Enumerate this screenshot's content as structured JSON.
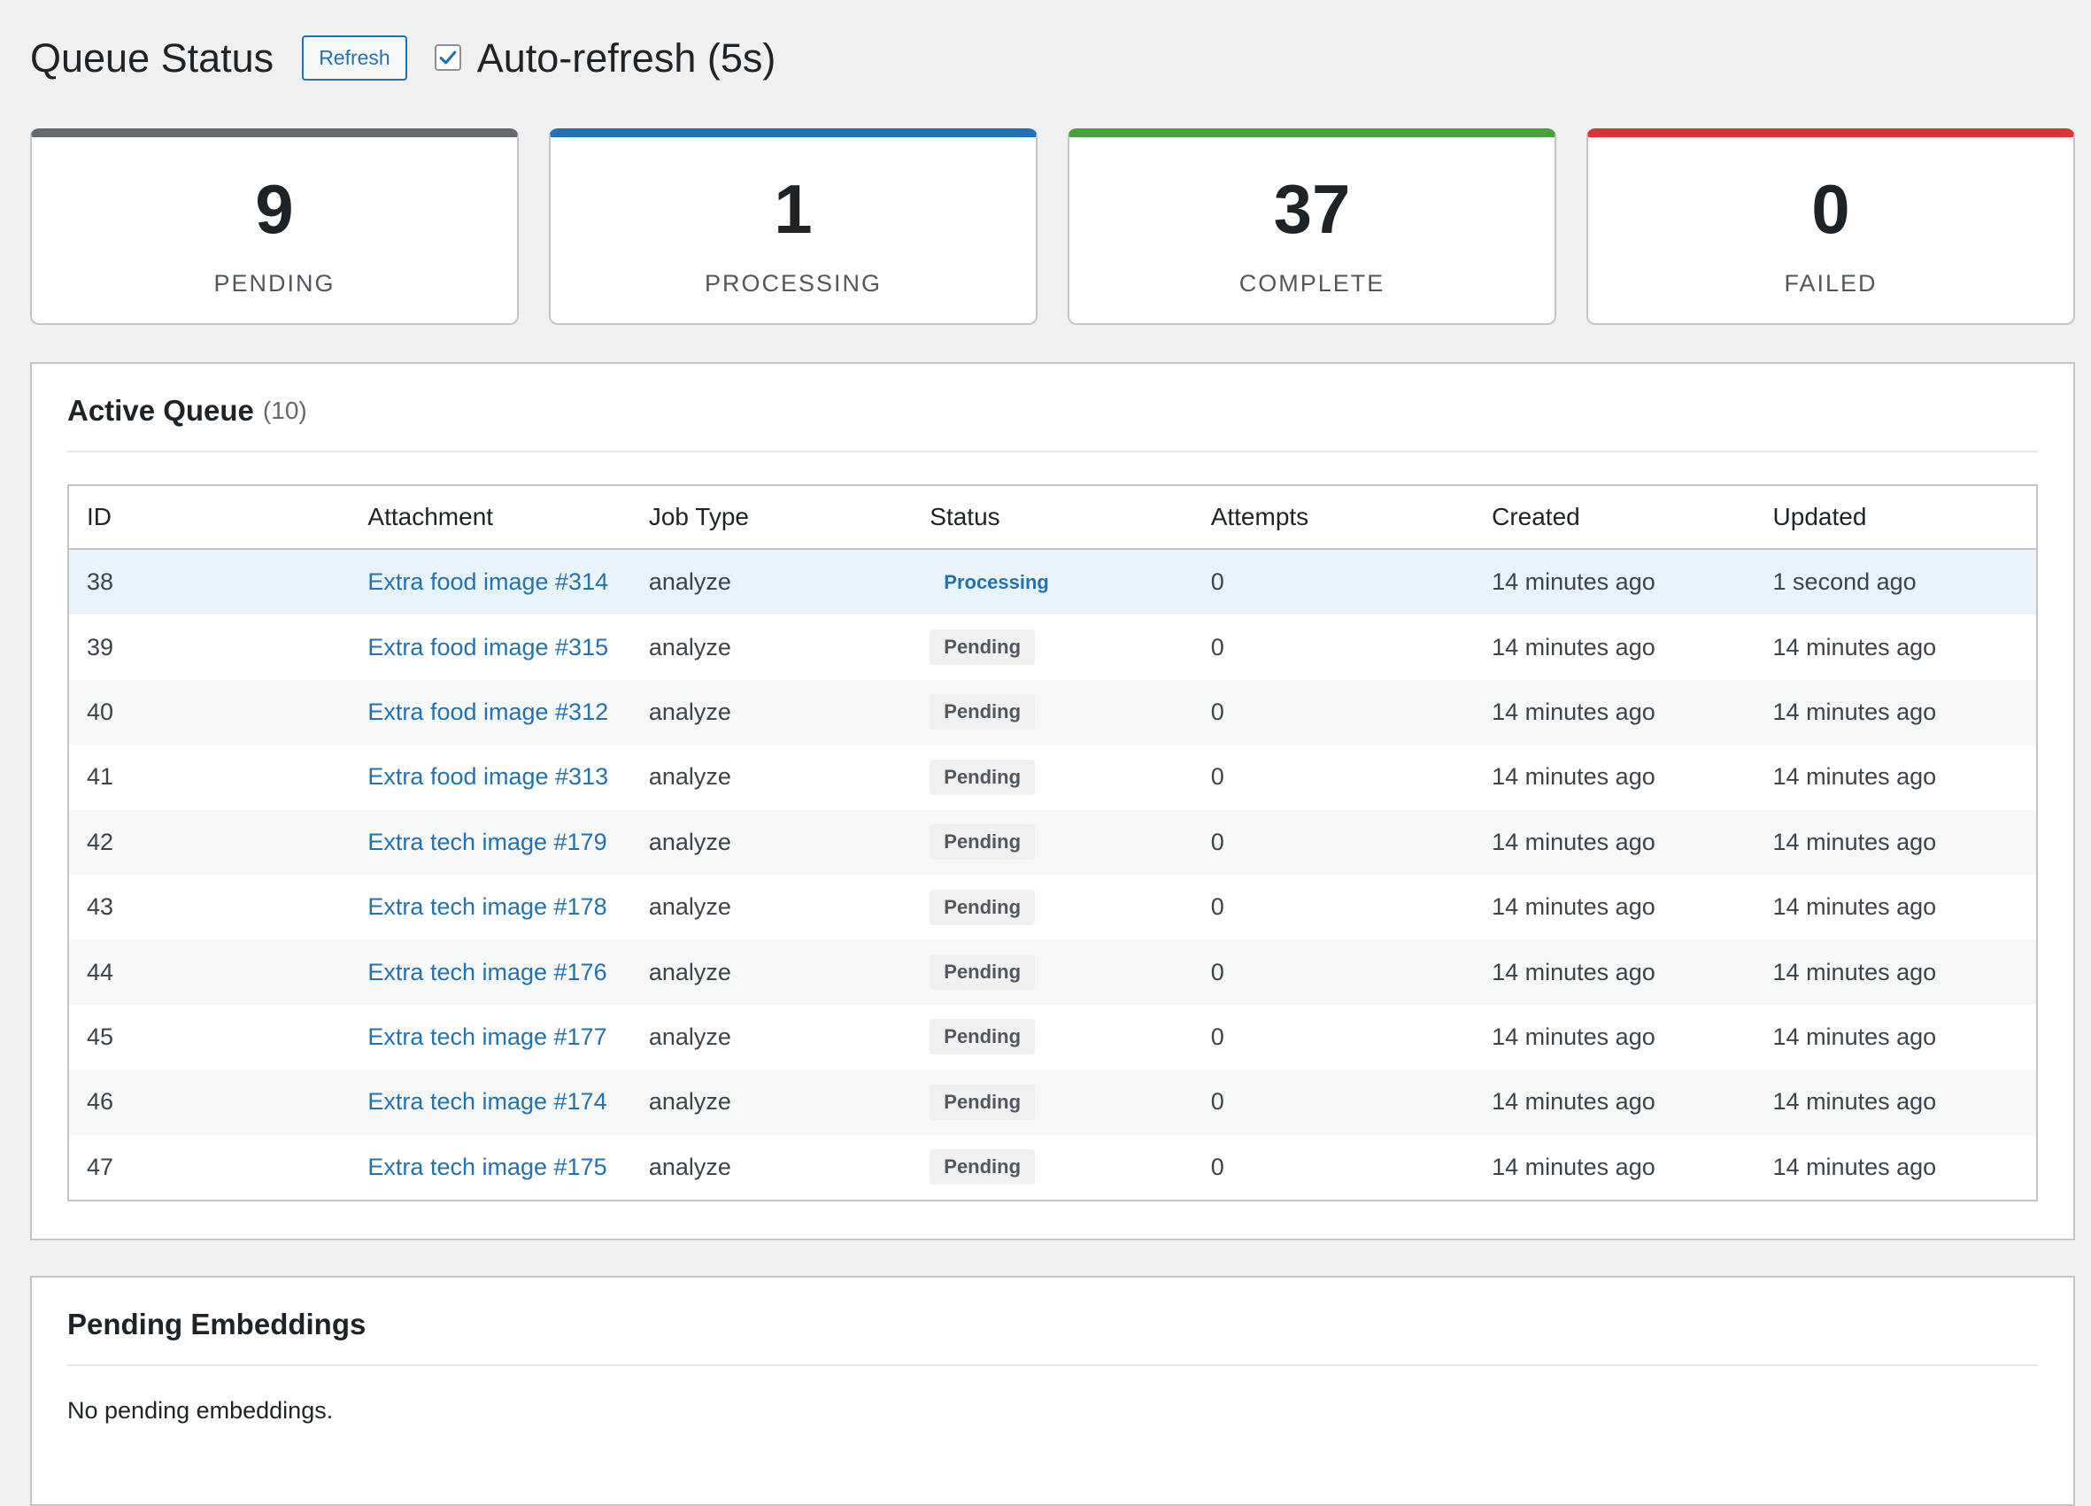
{
  "header": {
    "title": "Queue Status",
    "refresh_label": "Refresh",
    "auto_refresh_label": "Auto-refresh (5s)",
    "auto_refresh_checked": true
  },
  "stats": [
    {
      "value": "9",
      "label": "PENDING",
      "color": "#646970"
    },
    {
      "value": "1",
      "label": "PROCESSING",
      "color": "#2271b1"
    },
    {
      "value": "37",
      "label": "COMPLETE",
      "color": "#46a33a"
    },
    {
      "value": "0",
      "label": "FAILED",
      "color": "#d63638"
    }
  ],
  "active_queue": {
    "title": "Active Queue",
    "count": "(10)",
    "columns": [
      "ID",
      "Attachment",
      "Job Type",
      "Status",
      "Attempts",
      "Created",
      "Updated"
    ],
    "rows": [
      {
        "id": "38",
        "attachment": "Extra food image #314",
        "job_type": "analyze",
        "status": "Processing",
        "attempts": "0",
        "created": "14 minutes ago",
        "updated": "1 second ago"
      },
      {
        "id": "39",
        "attachment": "Extra food image #315",
        "job_type": "analyze",
        "status": "Pending",
        "attempts": "0",
        "created": "14 minutes ago",
        "updated": "14 minutes ago"
      },
      {
        "id": "40",
        "attachment": "Extra food image #312",
        "job_type": "analyze",
        "status": "Pending",
        "attempts": "0",
        "created": "14 minutes ago",
        "updated": "14 minutes ago"
      },
      {
        "id": "41",
        "attachment": "Extra food image #313",
        "job_type": "analyze",
        "status": "Pending",
        "attempts": "0",
        "created": "14 minutes ago",
        "updated": "14 minutes ago"
      },
      {
        "id": "42",
        "attachment": "Extra tech image #179",
        "job_type": "analyze",
        "status": "Pending",
        "attempts": "0",
        "created": "14 minutes ago",
        "updated": "14 minutes ago"
      },
      {
        "id": "43",
        "attachment": "Extra tech image #178",
        "job_type": "analyze",
        "status": "Pending",
        "attempts": "0",
        "created": "14 minutes ago",
        "updated": "14 minutes ago"
      },
      {
        "id": "44",
        "attachment": "Extra tech image #176",
        "job_type": "analyze",
        "status": "Pending",
        "attempts": "0",
        "created": "14 minutes ago",
        "updated": "14 minutes ago"
      },
      {
        "id": "45",
        "attachment": "Extra tech image #177",
        "job_type": "analyze",
        "status": "Pending",
        "attempts": "0",
        "created": "14 minutes ago",
        "updated": "14 minutes ago"
      },
      {
        "id": "46",
        "attachment": "Extra tech image #174",
        "job_type": "analyze",
        "status": "Pending",
        "attempts": "0",
        "created": "14 minutes ago",
        "updated": "14 minutes ago"
      },
      {
        "id": "47",
        "attachment": "Extra tech image #175",
        "job_type": "analyze",
        "status": "Pending",
        "attempts": "0",
        "created": "14 minutes ago",
        "updated": "14 minutes ago"
      }
    ]
  },
  "pending_embeddings": {
    "title": "Pending Embeddings",
    "empty_text": "No pending embeddings."
  }
}
